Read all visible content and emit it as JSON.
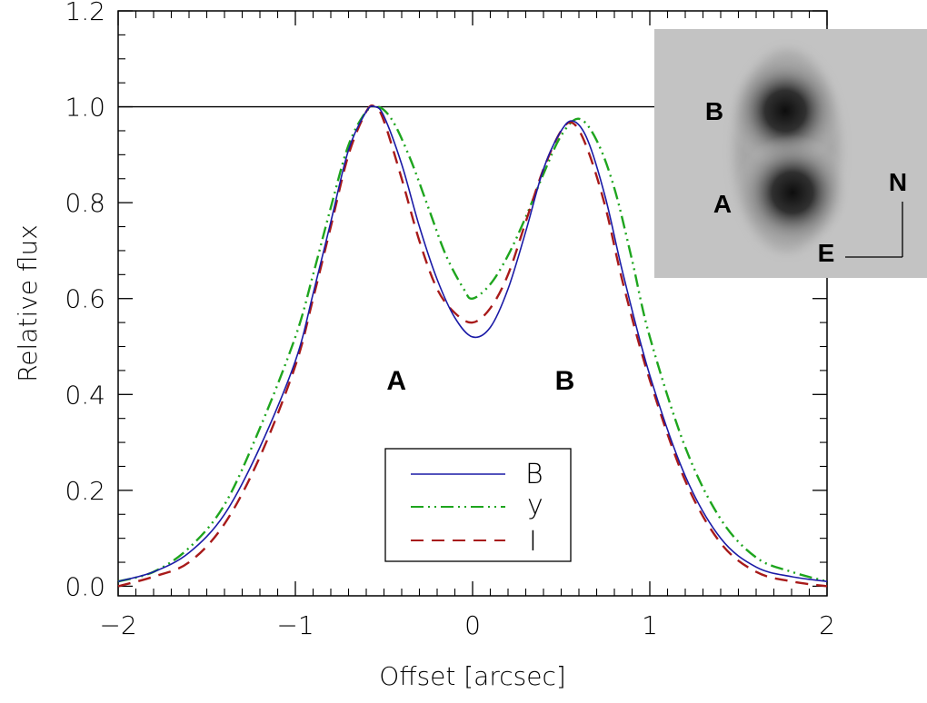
{
  "chart_data": {
    "type": "line",
    "xlabel": "Offset [arcsec]",
    "ylabel": "Relative flux",
    "xlim": [
      -2,
      2
    ],
    "ylim": [
      -0.02,
      1.2
    ],
    "xticks": [
      -2,
      -1,
      0,
      1,
      2
    ],
    "xtick_labels": [
      "−2",
      "−1",
      "0",
      "1",
      "2"
    ],
    "yticks": [
      0.0,
      0.2,
      0.4,
      0.6,
      0.8,
      1.0,
      1.2
    ],
    "ytick_labels": [
      "0.0",
      "0.2",
      "0.4",
      "0.6",
      "0.8",
      "1.0",
      "1.2"
    ],
    "reference_line": 1.0,
    "grid": false,
    "legend_position": "bottom-center",
    "peak_labels": [
      {
        "text": "A",
        "x": -0.43,
        "y": 0.41
      },
      {
        "text": "B",
        "x": 0.52,
        "y": 0.41
      }
    ],
    "series": [
      {
        "name": "B",
        "color": "#1a1aa6",
        "dash": "solid",
        "x": [
          -2.0,
          -1.8,
          -1.6,
          -1.4,
          -1.2,
          -1.0,
          -0.9,
          -0.8,
          -0.7,
          -0.6,
          -0.55,
          -0.5,
          -0.4,
          -0.3,
          -0.2,
          -0.1,
          0.0,
          0.1,
          0.2,
          0.3,
          0.4,
          0.5,
          0.57,
          0.65,
          0.75,
          0.85,
          1.0,
          1.2,
          1.4,
          1.6,
          1.8,
          2.0
        ],
        "values": [
          0.01,
          0.03,
          0.07,
          0.15,
          0.29,
          0.47,
          0.61,
          0.76,
          0.91,
          0.99,
          1.0,
          0.98,
          0.88,
          0.75,
          0.64,
          0.56,
          0.52,
          0.54,
          0.62,
          0.74,
          0.87,
          0.95,
          0.97,
          0.93,
          0.81,
          0.65,
          0.44,
          0.23,
          0.1,
          0.04,
          0.02,
          0.01
        ]
      },
      {
        "name": "y",
        "color": "#1ea51e",
        "dash": "dash-dot-dot",
        "x": [
          -2.0,
          -1.8,
          -1.6,
          -1.4,
          -1.2,
          -1.0,
          -0.9,
          -0.8,
          -0.7,
          -0.6,
          -0.53,
          -0.45,
          -0.35,
          -0.25,
          -0.15,
          -0.05,
          0.0,
          0.1,
          0.2,
          0.3,
          0.4,
          0.5,
          0.6,
          0.7,
          0.8,
          0.9,
          1.0,
          1.2,
          1.4,
          1.6,
          1.8,
          2.0
        ],
        "values": [
          0.01,
          0.03,
          0.08,
          0.17,
          0.33,
          0.52,
          0.65,
          0.79,
          0.92,
          0.99,
          1.0,
          0.97,
          0.89,
          0.79,
          0.69,
          0.62,
          0.6,
          0.63,
          0.69,
          0.77,
          0.86,
          0.94,
          0.975,
          0.93,
          0.83,
          0.68,
          0.52,
          0.29,
          0.14,
          0.06,
          0.03,
          0.01
        ]
      },
      {
        "name": "I",
        "color": "#a81a1a",
        "dash": "dashed",
        "x": [
          -2.0,
          -1.8,
          -1.6,
          -1.4,
          -1.2,
          -1.0,
          -0.9,
          -0.8,
          -0.7,
          -0.6,
          -0.55,
          -0.5,
          -0.4,
          -0.3,
          -0.2,
          -0.1,
          0.0,
          0.1,
          0.2,
          0.3,
          0.4,
          0.5,
          0.57,
          0.65,
          0.75,
          0.85,
          1.0,
          1.2,
          1.4,
          1.6,
          1.8,
          2.0
        ],
        "values": [
          0.0,
          0.02,
          0.05,
          0.13,
          0.27,
          0.46,
          0.6,
          0.75,
          0.9,
          0.99,
          1.0,
          0.97,
          0.85,
          0.72,
          0.62,
          0.57,
          0.55,
          0.58,
          0.65,
          0.76,
          0.87,
          0.95,
          0.965,
          0.91,
          0.79,
          0.63,
          0.43,
          0.22,
          0.09,
          0.03,
          0.01,
          0.0
        ]
      }
    ],
    "inset": {
      "labels": [
        "B",
        "A",
        "N",
        "E"
      ],
      "background": "#c3c3c3",
      "sources": [
        {
          "name": "B",
          "dx": 0.95,
          "dy": 0.6
        },
        {
          "name": "A",
          "dx": 0.95,
          "dy": -0.45
        }
      ]
    }
  }
}
